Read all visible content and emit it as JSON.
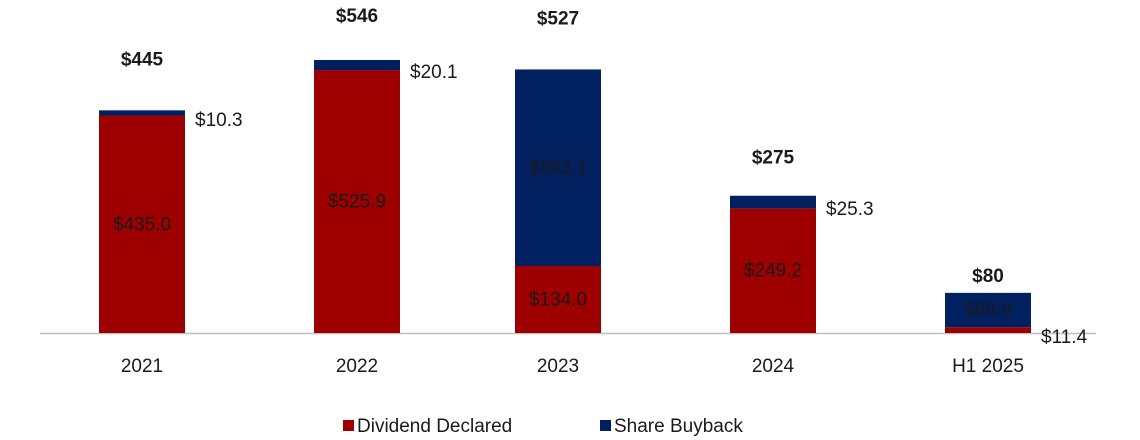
{
  "chart_data": {
    "type": "stacked_bar",
    "categories": [
      "2021",
      "2022",
      "2023",
      "2024",
      "H1 2025"
    ],
    "series": [
      {
        "name": "Dividend Declared",
        "color": "#9e0000",
        "values": [
          435.0,
          525.9,
          134.0,
          249.2,
          11.4
        ],
        "value_labels": [
          "$435.0",
          "$525.9",
          "$134.0",
          "$249.2",
          "$11.4"
        ]
      },
      {
        "name": "Share Buyback",
        "color": "#002060",
        "values": [
          10.3,
          20.1,
          393.1,
          25.3,
          68.9
        ],
        "value_labels": [
          "$10.3",
          "$20.1",
          "$393.1",
          "$25.3",
          "$68.9"
        ]
      }
    ],
    "totals": [
      445,
      546,
      527,
      275,
      80
    ],
    "total_labels": [
      "$445",
      "$546",
      "$527",
      "$275",
      "$80"
    ],
    "legend": "bottom"
  }
}
